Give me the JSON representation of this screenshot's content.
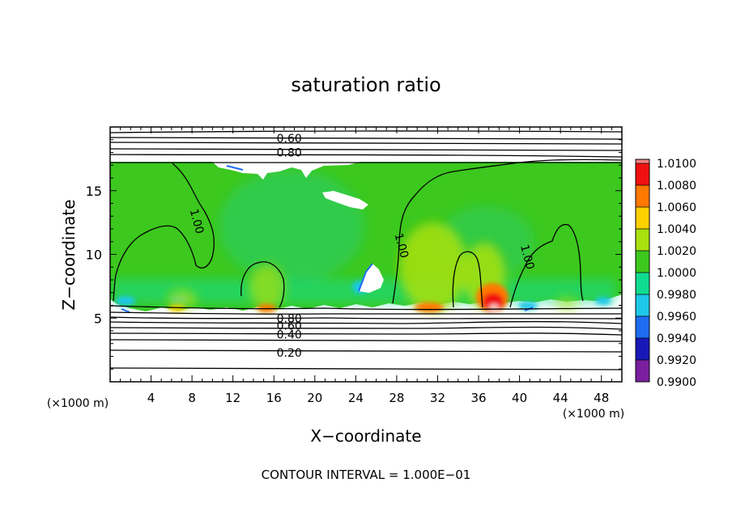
{
  "chart_data": {
    "type": "heatmap",
    "title": "saturation ratio",
    "xlabel": "X−coordinate",
    "ylabel": "Z−coordinate",
    "x_unit": "(×1000 m)",
    "y_unit": "(×1000 m)",
    "xlim": [
      0,
      50
    ],
    "ylim": [
      0,
      20
    ],
    "x_ticks": [
      4,
      8,
      12,
      16,
      20,
      24,
      28,
      32,
      36,
      40,
      44,
      48
    ],
    "y_ticks": [
      5,
      10,
      15
    ],
    "footer": "CONTOUR INTERVAL = 1.000E−01",
    "colorbar": {
      "levels": [
        "0.9900",
        "0.9920",
        "0.9940",
        "0.9960",
        "0.9980",
        "1.0000",
        "1.0020",
        "1.0040",
        "1.0060",
        "1.0080",
        "1.0100"
      ],
      "colors": [
        "#7a1fa0",
        "#1818b8",
        "#1e6cf0",
        "#1ec8e8",
        "#10dc90",
        "#3cc81e",
        "#a8e010",
        "#ffd000",
        "#ff7800",
        "#f01010",
        "#f08080"
      ]
    },
    "contour_labels": [
      {
        "text": "0.60",
        "x": 17.5,
        "y": 19.1
      },
      {
        "text": "0.80",
        "x": 17.5,
        "y": 18.0
      },
      {
        "text": "1.00",
        "x": 8.5,
        "y": 12.6
      },
      {
        "text": "1.00",
        "x": 28.5,
        "y": 10.7
      },
      {
        "text": "1.00",
        "x": 40.8,
        "y": 9.8
      },
      {
        "text": "0.80",
        "x": 17.5,
        "y": 5.0
      },
      {
        "text": "0.60",
        "x": 17.5,
        "y": 4.4
      },
      {
        "text": "0.40",
        "x": 17.5,
        "y": 3.7
      },
      {
        "text": "0.20",
        "x": 17.5,
        "y": 2.3
      }
    ]
  }
}
